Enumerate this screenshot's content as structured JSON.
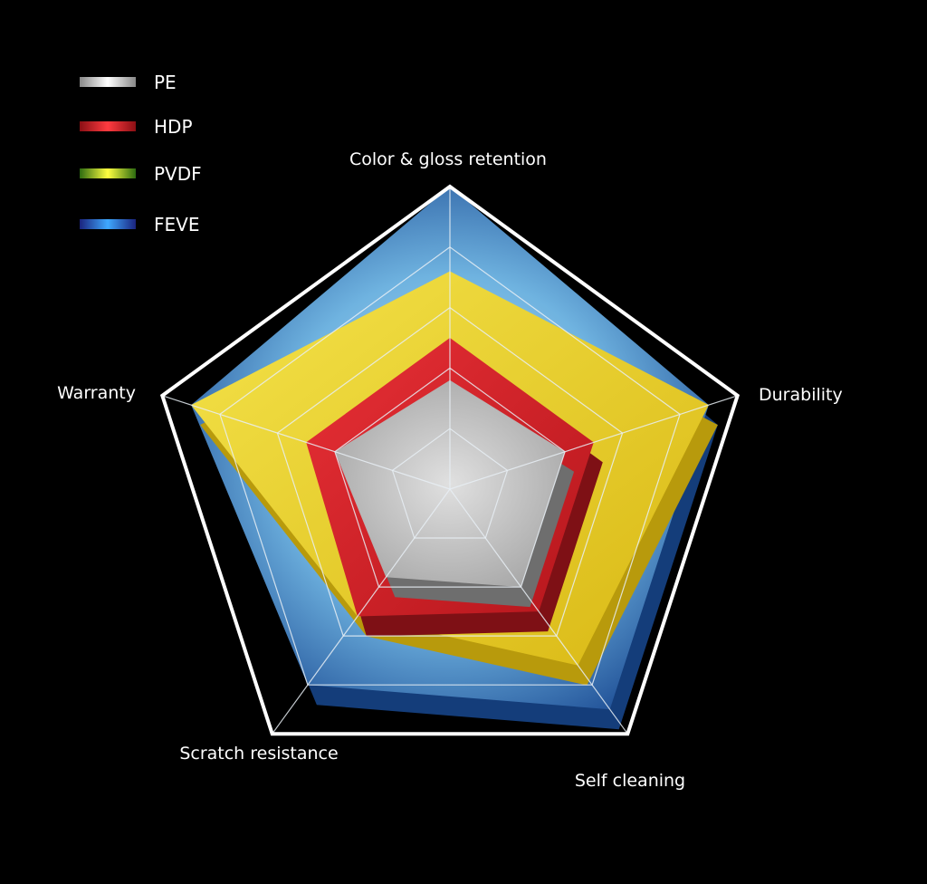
{
  "chart_data": {
    "type": "radar",
    "title": "",
    "axes": [
      "Color & gloss retention",
      "Durability",
      "Self cleaning",
      "Scratch resistance",
      "Warranty"
    ],
    "scale": {
      "min": 0,
      "max": 5,
      "rings": 5
    },
    "legend_position": "top-left",
    "series": [
      {
        "name": "FEVE",
        "color": "#2f6fb3",
        "values": [
          5.0,
          4.5,
          4.5,
          4.0,
          4.5
        ]
      },
      {
        "name": "PVDF",
        "color": "#e8d21f",
        "values": [
          3.6,
          4.5,
          3.6,
          2.6,
          4.5
        ]
      },
      {
        "name": "HDP",
        "color": "#d8262b",
        "values": [
          2.5,
          2.5,
          2.5,
          2.6,
          2.5
        ]
      },
      {
        "name": "PE",
        "color": "#c8c8c8",
        "values": [
          1.8,
          2.0,
          2.0,
          1.8,
          2.0
        ]
      }
    ],
    "legend": [
      "PE",
      "HDP",
      "PVDF",
      "FEVE"
    ]
  }
}
